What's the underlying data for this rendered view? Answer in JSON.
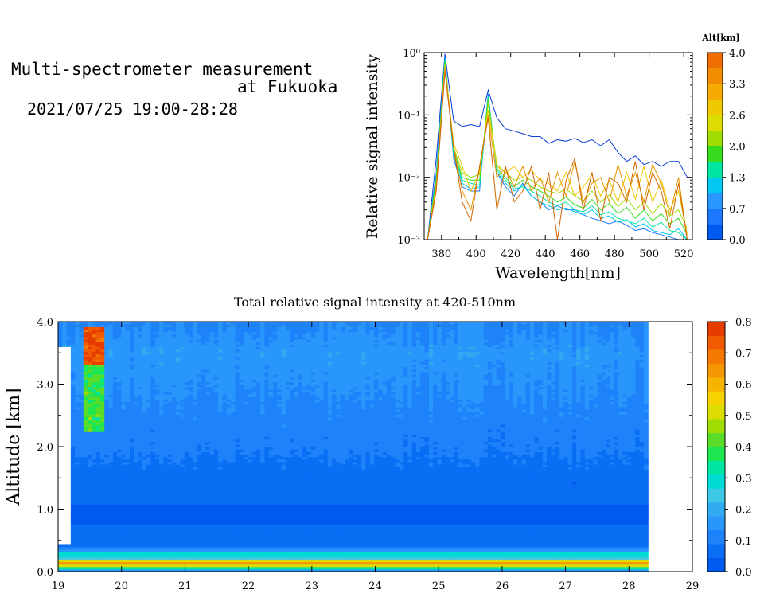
{
  "header": {
    "title_line1": "Multi-spectrometer measurement",
    "title_line2": "at Fukuoka",
    "datetime": "2021/07/25 19:00-28:28"
  },
  "chart_data": [
    {
      "type": "line",
      "title": "",
      "xlabel": "Wavelength[nm]",
      "ylabel": "Relative signal intensity",
      "yscale": "log",
      "xlim": [
        370,
        525
      ],
      "ylim": [
        0.001,
        1
      ],
      "x_ticks": [
        380,
        400,
        420,
        440,
        460,
        480,
        500,
        520
      ],
      "y_ticks": [
        {
          "value": 1,
          "label": "10⁰"
        },
        {
          "value": 0.1,
          "label": "10⁻¹"
        },
        {
          "value": 0.01,
          "label": "10⁻²"
        },
        {
          "value": 0.001,
          "label": "10⁻³"
        }
      ],
      "x": [
        372,
        377,
        382,
        387,
        392,
        397,
        402,
        407,
        412,
        417,
        422,
        427,
        432,
        437,
        442,
        447,
        452,
        457,
        462,
        467,
        472,
        477,
        482,
        487,
        492,
        497,
        502,
        507,
        512,
        517,
        522
      ],
      "series": [
        {
          "color": "#0a3cd2",
          "values": [
            0.001,
            0.02,
            0.95,
            0.08,
            0.065,
            0.07,
            0.065,
            0.25,
            0.09,
            0.06,
            0.055,
            0.05,
            0.045,
            0.045,
            0.035,
            0.04,
            0.038,
            0.042,
            0.036,
            0.04,
            0.032,
            0.04,
            0.025,
            0.018,
            0.022,
            0.016,
            0.018,
            0.015,
            0.018,
            0.018,
            0.01
          ]
        },
        {
          "color": "#1e78ff",
          "values": [
            0.001,
            0.012,
            0.85,
            0.02,
            0.007,
            0.006,
            0.006,
            0.22,
            0.012,
            0.007,
            0.005,
            0.008,
            0.005,
            0.004,
            0.003,
            0.0035,
            0.003,
            0.003,
            0.0025,
            0.0022,
            0.002,
            0.0018,
            0.002,
            0.0017,
            0.0014,
            0.0015,
            0.0013,
            0.0012,
            0.0011,
            0.001,
            0.001
          ]
        },
        {
          "color": "#00c8f0",
          "values": [
            0.001,
            0.01,
            0.8,
            0.022,
            0.008,
            0.0065,
            0.007,
            0.2,
            0.012,
            0.008,
            0.006,
            0.0075,
            0.005,
            0.004,
            0.0035,
            0.003,
            0.0032,
            0.0028,
            0.0025,
            0.003,
            0.0022,
            0.0024,
            0.0019,
            0.0021,
            0.0016,
            0.0018,
            0.0014,
            0.0013,
            0.0012,
            0.0015,
            0.001
          ]
        },
        {
          "color": "#00e6a0",
          "values": [
            0.001,
            0.01,
            0.75,
            0.025,
            0.009,
            0.008,
            0.0075,
            0.2,
            0.013,
            0.009,
            0.0065,
            0.007,
            0.006,
            0.005,
            0.004,
            0.0035,
            0.004,
            0.003,
            0.0028,
            0.0035,
            0.0025,
            0.0028,
            0.0022,
            0.002,
            0.0018,
            0.0022,
            0.0016,
            0.0019,
            0.0014,
            0.0013,
            0.001
          ]
        },
        {
          "color": "#37dc1e",
          "values": [
            0.001,
            0.009,
            0.7,
            0.028,
            0.01,
            0.009,
            0.009,
            0.18,
            0.014,
            0.01,
            0.007,
            0.009,
            0.007,
            0.006,
            0.005,
            0.004,
            0.0048,
            0.0036,
            0.0032,
            0.0044,
            0.003,
            0.0038,
            0.0026,
            0.0033,
            0.0022,
            0.003,
            0.002,
            0.0026,
            0.0018,
            0.0022,
            0.0012
          ]
        },
        {
          "color": "#a0dc00",
          "values": [
            0.001,
            0.008,
            0.65,
            0.03,
            0.012,
            0.01,
            0.011,
            0.15,
            0.016,
            0.012,
            0.009,
            0.01,
            0.009,
            0.007,
            0.006,
            0.0055,
            0.0065,
            0.005,
            0.0042,
            0.006,
            0.004,
            0.0052,
            0.0034,
            0.0046,
            0.003,
            0.004,
            0.0026,
            0.0038,
            0.0024,
            0.003,
            0.0015
          ]
        },
        {
          "color": "#f0c800",
          "values": [
            0.001,
            0.007,
            0.6,
            0.035,
            0.015,
            0.006,
            0.012,
            0.12,
            0.015,
            0.012,
            0.015,
            0.01,
            0.013,
            0.009,
            0.008,
            0.006,
            0.012,
            0.005,
            0.007,
            0.011,
            0.005,
            0.009,
            0.004,
            0.012,
            0.0045,
            0.015,
            0.004,
            0.009,
            0.003,
            0.006,
            0.0012
          ]
        },
        {
          "color": "#e69600",
          "values": [
            0.001,
            0.007,
            0.55,
            0.03,
            0.006,
            0.003,
            0.014,
            0.1,
            0.01,
            0.014,
            0.007,
            0.015,
            0.006,
            0.01,
            0.004,
            0.012,
            0.005,
            0.018,
            0.004,
            0.008,
            0.01,
            0.004,
            0.016,
            0.005,
            0.012,
            0.004,
            0.016,
            0.008,
            0.0025,
            0.01,
            0.001
          ]
        },
        {
          "color": "#d26400",
          "values": [
            0.001,
            0.006,
            0.5,
            0.03,
            0.004,
            0.002,
            0.015,
            0.09,
            0.003,
            0.015,
            0.004,
            0.006,
            0.015,
            0.003,
            0.012,
            0.001,
            0.009,
            0.02,
            0.003,
            0.012,
            0.002,
            0.01,
            0.008,
            0.004,
            0.018,
            0.003,
            0.012,
            0.006,
            0.0015,
            0.008,
            0.001
          ]
        }
      ],
      "colorbar": {
        "title": "Alt[km]",
        "range": [
          0.0,
          4.0
        ],
        "tick_labels": [
          "4.0",
          "3.3",
          "2.6",
          "2.0",
          "1.3",
          "0.7",
          "0.0"
        ],
        "colors": [
          "#005af0",
          "#1e78ff",
          "#2897ff",
          "#00c8f0",
          "#00e6a0",
          "#37dc1e",
          "#a0dc00",
          "#dcdc00",
          "#f0c800",
          "#f5aa00",
          "#f08c00",
          "#f06e00"
        ]
      }
    },
    {
      "type": "heatmap",
      "title": "Total relative signal intensity at 420-510nm",
      "xlabel": "",
      "ylabel": "Altitude [km]",
      "xlim": [
        19,
        29
      ],
      "ylim": [
        0.0,
        4.0
      ],
      "x_ticks": [
        19,
        20,
        21,
        22,
        23,
        24,
        25,
        26,
        27,
        28,
        29
      ],
      "y_ticks": [
        "0.0",
        "1.0",
        "2.0",
        "3.0",
        "4.0"
      ],
      "data_extent_x": [
        19.0,
        28.3
      ],
      "value_range": [
        0.0,
        0.8
      ],
      "profile": [
        {
          "alt": 0.0,
          "value": 0.06
        },
        {
          "alt": 0.1,
          "value": 0.5
        },
        {
          "alt": 0.15,
          "value": 0.7
        },
        {
          "alt": 0.22,
          "value": 0.25
        },
        {
          "alt": 0.3,
          "value": 0.3
        },
        {
          "alt": 0.35,
          "value": 0.12
        },
        {
          "alt": 0.5,
          "value": 0.05
        },
        {
          "alt": 1.0,
          "value": 0.04
        },
        {
          "alt": 1.6,
          "value": 0.07
        },
        {
          "alt": 2.0,
          "value": 0.1
        },
        {
          "alt": 2.6,
          "value": 0.12
        },
        {
          "alt": 3.0,
          "value": 0.14
        },
        {
          "alt": 3.5,
          "value": 0.16
        },
        {
          "alt": 4.0,
          "value": 0.12
        }
      ],
      "colorbar": {
        "range": [
          0.0,
          0.8
        ],
        "tick_labels": [
          "0.8",
          "0.7",
          "0.6",
          "0.5",
          "0.4",
          "0.3",
          "0.2",
          "0.1",
          "0.0"
        ],
        "colors": [
          "#005af0",
          "#0a6ef5",
          "#1e82fa",
          "#2896fa",
          "#32aaf0",
          "#3cc8e6",
          "#00dcd2",
          "#00e6a0",
          "#1ee650",
          "#5adc28",
          "#a0dc00",
          "#dcdc00",
          "#f5d200",
          "#f5b400",
          "#f59600",
          "#f57800",
          "#f05a00",
          "#e63c00"
        ]
      }
    }
  ]
}
